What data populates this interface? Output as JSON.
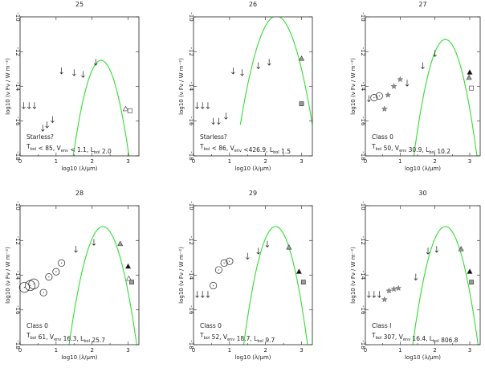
{
  "chart_data": [
    {
      "type": "scatter",
      "title": "25",
      "xlabel": "log10 (λ/μm)",
      "ylabel": "log10 (ν Fν / W m⁻²)",
      "xlim": [
        0,
        3.3
      ],
      "ylim": [
        -18,
        -10
      ],
      "xticks": [
        "0",
        "1",
        "2",
        "3"
      ],
      "yticks": [
        "-10",
        "-12",
        "-14",
        "-16",
        "-18"
      ],
      "annotation": [
        "Starless?",
        "T_bol < 85, V_env < 1.1, L_bol 2.0"
      ],
      "model": {
        "peak_x": 2.25,
        "peak_y": -12.5,
        "width": 0.33
      },
      "points": [
        {
          "marker": "arrow",
          "x": 0.1,
          "y": -15.1
        },
        {
          "marker": "arrow",
          "x": 0.25,
          "y": -15.1
        },
        {
          "marker": "arrow",
          "x": 0.4,
          "y": -15.1
        },
        {
          "marker": "arrow",
          "x": 0.63,
          "y": -16.4
        },
        {
          "marker": "arrow",
          "x": 0.75,
          "y": -16.2
        },
        {
          "marker": "arrow",
          "x": 0.9,
          "y": -15.9
        },
        {
          "marker": "arrow",
          "x": 1.15,
          "y": -13.1
        },
        {
          "marker": "arrow",
          "x": 1.5,
          "y": -13.2
        },
        {
          "marker": "arrow",
          "x": 1.75,
          "y": -13.3
        },
        {
          "marker": "arrow",
          "x": 2.1,
          "y": -12.6
        },
        {
          "marker": "triangle-open",
          "x": 2.93,
          "y": -15.3
        },
        {
          "marker": "square-open",
          "x": 3.05,
          "y": -15.4
        }
      ]
    },
    {
      "type": "scatter",
      "title": "26",
      "xlabel": "log10 (λ/μm)",
      "ylabel": "log10 (ν Fν / W m⁻²)",
      "xlim": [
        0,
        3.3
      ],
      "ylim": [
        -18,
        -10
      ],
      "xticks": [
        "0",
        "1",
        "2",
        "3"
      ],
      "yticks": [
        "-10",
        "-12",
        "-14",
        "-16",
        "-18"
      ],
      "annotation": [
        "Starless?",
        "T_bol < 86, V_env <426.9, L_bol 1.5"
      ],
      "model": {
        "peak_x": 2.3,
        "peak_y": -9.95,
        "width": 0.4
      },
      "points": [
        {
          "marker": "arrow",
          "x": 0.1,
          "y": -15.1
        },
        {
          "marker": "arrow",
          "x": 0.25,
          "y": -15.1
        },
        {
          "marker": "arrow",
          "x": 0.4,
          "y": -15.1
        },
        {
          "marker": "arrow",
          "x": 0.55,
          "y": -16.0
        },
        {
          "marker": "arrow",
          "x": 0.7,
          "y": -16.0
        },
        {
          "marker": "arrow",
          "x": 0.9,
          "y": -15.7
        },
        {
          "marker": "arrow",
          "x": 1.1,
          "y": -13.1
        },
        {
          "marker": "arrow",
          "x": 1.35,
          "y": -13.2
        },
        {
          "marker": "arrow",
          "x": 1.8,
          "y": -12.8
        },
        {
          "marker": "arrow",
          "x": 2.1,
          "y": -12.6
        },
        {
          "marker": "triangle-gray",
          "x": 3.0,
          "y": -12.4
        },
        {
          "marker": "square-gray",
          "x": 3.0,
          "y": -15.0
        }
      ]
    },
    {
      "type": "scatter",
      "title": "27",
      "xlabel": "log10 (λ/μm)",
      "ylabel": "log10 (ν Fν / W m⁻²)",
      "xlim": [
        0,
        3.3
      ],
      "ylim": [
        -18,
        -10
      ],
      "xticks": [
        "0",
        "1",
        "2",
        "3"
      ],
      "yticks": [
        "-10",
        "-12",
        "-14",
        "-16",
        "-18"
      ],
      "annotation": [
        "Class 0",
        "T_bol 50, V_env 30.9, L_bol 10.2"
      ],
      "model": {
        "peak_x": 2.3,
        "peak_y": -11.3,
        "width": 0.35
      },
      "points": [
        {
          "marker": "arrow",
          "x": 0.1,
          "y": -14.7
        },
        {
          "marker": "circle",
          "x": 0.25,
          "y": -14.65
        },
        {
          "marker": "circle",
          "x": 0.4,
          "y": -14.55
        },
        {
          "marker": "star",
          "x": 0.55,
          "y": -15.3
        },
        {
          "marker": "star",
          "x": 0.65,
          "y": -14.5
        },
        {
          "marker": "star",
          "x": 0.82,
          "y": -14.0
        },
        {
          "marker": "star",
          "x": 1.0,
          "y": -13.6
        },
        {
          "marker": "arrow",
          "x": 1.2,
          "y": -13.8
        },
        {
          "marker": "arrow",
          "x": 1.65,
          "y": -12.8
        },
        {
          "marker": "arrow",
          "x": 2.0,
          "y": -12.1
        },
        {
          "marker": "triangle-black",
          "x": 3.0,
          "y": -13.2
        },
        {
          "marker": "triangle-gray",
          "x": 2.98,
          "y": -13.5
        },
        {
          "marker": "square-open",
          "x": 3.05,
          "y": -14.1
        }
      ]
    },
    {
      "type": "scatter",
      "title": "28",
      "xlabel": "log10 (λ/μm)",
      "ylabel": "log10 (ν Fν / W m⁻²)",
      "xlim": [
        0,
        3.3
      ],
      "ylim": [
        -18,
        -10
      ],
      "xticks": [
        "0",
        "1",
        "2",
        "3"
      ],
      "yticks": [
        "-10",
        "-12",
        "-14",
        "-16",
        "-18"
      ],
      "annotation": [
        "Class 0",
        "T_bol 61, V_env 16.3, L_bol 25.7"
      ],
      "model": {
        "peak_x": 2.3,
        "peak_y": -11.2,
        "width": 0.36
      },
      "points": [
        {
          "marker": "circle-lg",
          "x": 0.12,
          "y": -14.7
        },
        {
          "marker": "circle-lg",
          "x": 0.28,
          "y": -14.6
        },
        {
          "marker": "circle-lg",
          "x": 0.38,
          "y": -14.5
        },
        {
          "marker": "circle",
          "x": 0.65,
          "y": -15.0
        },
        {
          "marker": "circle",
          "x": 0.8,
          "y": -14.1
        },
        {
          "marker": "circle",
          "x": 1.0,
          "y": -13.8
        },
        {
          "marker": "circle",
          "x": 1.15,
          "y": -13.3
        },
        {
          "marker": "arrow",
          "x": 1.55,
          "y": -12.5
        },
        {
          "marker": "arrow",
          "x": 2.05,
          "y": -12.1
        },
        {
          "marker": "triangle-gray",
          "x": 2.78,
          "y": -12.2
        },
        {
          "marker": "triangle-black",
          "x": 3.0,
          "y": -13.5
        },
        {
          "marker": "triangle-open",
          "x": 3.02,
          "y": -14.2
        },
        {
          "marker": "square-gray",
          "x": 3.1,
          "y": -14.4
        }
      ]
    },
    {
      "type": "scatter",
      "title": "29",
      "xlabel": "log10 (λ/μm)",
      "ylabel": "log10 (ν Fν / W m⁻²)",
      "xlim": [
        0,
        3.3
      ],
      "ylim": [
        -18,
        -10
      ],
      "xticks": [
        "0",
        "1",
        "2",
        "3"
      ],
      "yticks": [
        "-10",
        "-12",
        "-14",
        "-16",
        "-18"
      ],
      "annotation": [
        "Class 0",
        "T_bol 52, V_env 18.7, L_bol 9.7"
      ],
      "model": {
        "peak_x": 2.28,
        "peak_y": -11.2,
        "width": 0.34
      },
      "points": [
        {
          "marker": "arrow",
          "x": 0.1,
          "y": -15.1
        },
        {
          "marker": "arrow",
          "x": 0.25,
          "y": -15.1
        },
        {
          "marker": "arrow",
          "x": 0.4,
          "y": -15.1
        },
        {
          "marker": "circle",
          "x": 0.55,
          "y": -14.6
        },
        {
          "marker": "circle",
          "x": 0.7,
          "y": -13.7
        },
        {
          "marker": "circle",
          "x": 0.85,
          "y": -13.3
        },
        {
          "marker": "circle",
          "x": 1.0,
          "y": -13.2
        },
        {
          "marker": "arrow",
          "x": 1.5,
          "y": -12.9
        },
        {
          "marker": "arrow",
          "x": 1.8,
          "y": -12.6
        },
        {
          "marker": "arrow",
          "x": 2.05,
          "y": -12.2
        },
        {
          "marker": "triangle-gray",
          "x": 2.65,
          "y": -12.4
        },
        {
          "marker": "triangle-black",
          "x": 2.93,
          "y": -13.8
        },
        {
          "marker": "square-gray",
          "x": 3.05,
          "y": -14.4
        }
      ]
    },
    {
      "type": "scatter",
      "title": "30",
      "xlabel": "log10 (λ/μm)",
      "ylabel": "log10 (ν Fν / W m⁻²)",
      "xlim": [
        0,
        3.3
      ],
      "ylim": [
        -18,
        -10
      ],
      "xticks": [
        "0",
        "1",
        "2",
        "3"
      ],
      "yticks": [
        "-10",
        "-12",
        "-14",
        "-16",
        "-18"
      ],
      "annotation": [
        "Class I",
        "T_bol 307, V_env 16.4, L_bol 806.8"
      ],
      "model": {
        "peak_x": 2.3,
        "peak_y": -11.2,
        "width": 0.36
      },
      "points": [
        {
          "marker": "arrow",
          "x": 0.1,
          "y": -15.1
        },
        {
          "marker": "arrow",
          "x": 0.25,
          "y": -15.1
        },
        {
          "marker": "arrow",
          "x": 0.4,
          "y": -15.1
        },
        {
          "marker": "star",
          "x": 0.55,
          "y": -15.4
        },
        {
          "marker": "star",
          "x": 0.68,
          "y": -14.9
        },
        {
          "marker": "star",
          "x": 0.82,
          "y": -14.8
        },
        {
          "marker": "star",
          "x": 0.95,
          "y": -14.75
        },
        {
          "marker": "arrow",
          "x": 1.45,
          "y": -14.1
        },
        {
          "marker": "arrow",
          "x": 1.8,
          "y": -12.6
        },
        {
          "marker": "arrow",
          "x": 2.05,
          "y": -12.5
        },
        {
          "marker": "triangle-gray",
          "x": 2.75,
          "y": -12.5
        },
        {
          "marker": "triangle-black",
          "x": 3.0,
          "y": -13.8
        },
        {
          "marker": "square-gray",
          "x": 3.05,
          "y": -14.4
        }
      ]
    }
  ]
}
